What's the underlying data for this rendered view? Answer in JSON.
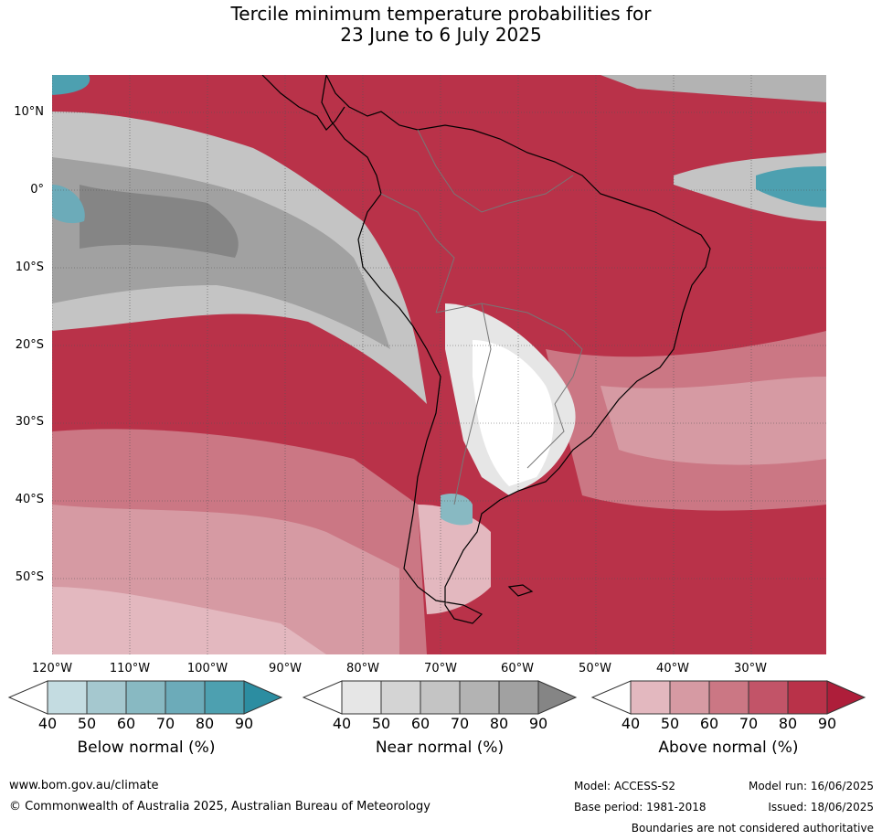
{
  "title": {
    "line1": "Tercile minimum temperature probabilities for",
    "line2": "23 June to 6 July 2025"
  },
  "axes": {
    "lat_ticks": [
      "10°N",
      "0°",
      "10°S",
      "20°S",
      "30°S",
      "40°S",
      "50°S"
    ],
    "lon_ticks": [
      "120°W",
      "110°W",
      "100°W",
      "90°W",
      "80°W",
      "70°W",
      "60°W",
      "50°W",
      "40°W",
      "30°W"
    ]
  },
  "legend": {
    "ticks": [
      "40",
      "50",
      "60",
      "70",
      "80",
      "90"
    ],
    "below": {
      "title": "Below normal (%)",
      "colors": [
        "#ffffff",
        "#c4dce1",
        "#a5c8cf",
        "#88b9c2",
        "#6cabb9",
        "#4da0b0",
        "#2c8da1"
      ]
    },
    "near": {
      "title": "Near normal (%)",
      "colors": [
        "#ffffff",
        "#e6e6e6",
        "#d4d4d4",
        "#c4c4c4",
        "#b3b3b3",
        "#a1a1a1",
        "#858585"
      ]
    },
    "above": {
      "title": "Above normal (%)",
      "colors": [
        "#ffffff",
        "#e3b8bf",
        "#d69aa3",
        "#cb7784",
        "#c25468",
        "#b93249",
        "#ae1e3a"
      ]
    }
  },
  "footer": {
    "url": "www.bom.gov.au/climate",
    "copyright": "© Commonwealth of Australia 2025, Australian Bureau of Meteorology",
    "model": "Model: ACCESS-S2",
    "base_period": "Base period: 1981-2018",
    "model_run": "Model run: 16/06/2025",
    "issued": "Issued: 18/06/2025",
    "disclaimer": "Boundaries are not considered authoritative"
  }
}
